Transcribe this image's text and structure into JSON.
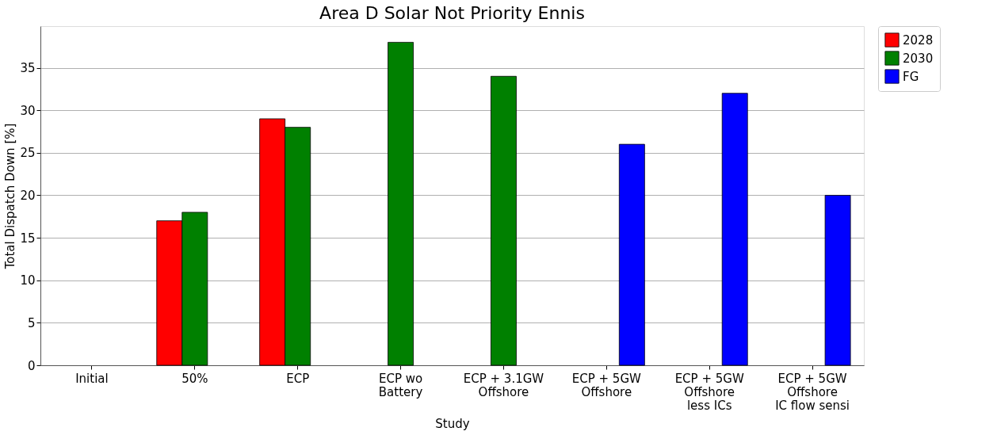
{
  "chart_data": {
    "type": "bar",
    "title": "Area D Solar Not Priority Ennis",
    "xlabel": "Study",
    "ylabel": "Total Dispatch Down [%]",
    "categories": [
      "Initial",
      "50%",
      "ECP",
      "ECP wo\nBattery",
      "ECP + 3.1GW\nOffshore",
      "ECP + 5GW\nOffshore",
      "ECP + 5GW\nOffshore\nless ICs",
      "ECP + 5GW\nOffshore\nIC flow sensi"
    ],
    "series": [
      {
        "name": "2028",
        "color": "#ff0000",
        "values": [
          null,
          17,
          29,
          null,
          null,
          null,
          null,
          null
        ]
      },
      {
        "name": "2030",
        "color": "#008000",
        "values": [
          null,
          18,
          28,
          38,
          34,
          null,
          null,
          null
        ]
      },
      {
        "name": "FG",
        "color": "#0000ff",
        "values": [
          null,
          null,
          null,
          null,
          null,
          26,
          32,
          20
        ]
      }
    ],
    "ylim": [
      0,
      39.9
    ],
    "yticks": [
      0,
      5,
      10,
      15,
      20,
      25,
      30,
      35
    ],
    "grid": "y",
    "legend": "right"
  }
}
